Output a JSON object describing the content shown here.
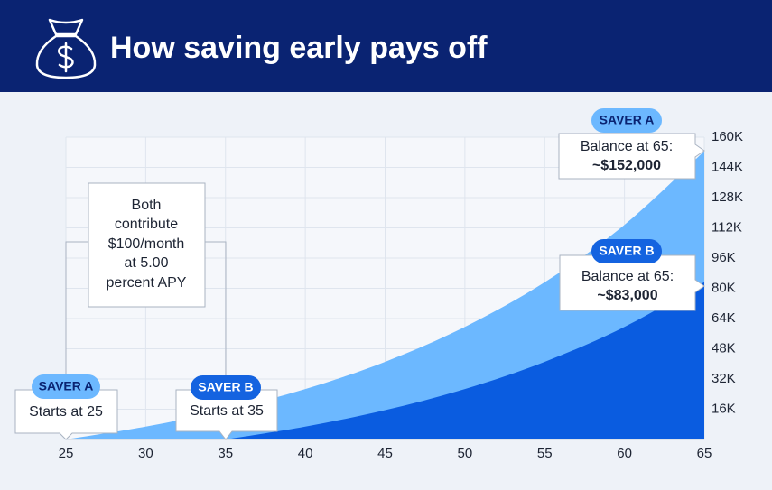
{
  "chart_data": {
    "type": "area",
    "title": "How saving early pays off",
    "x": [
      25,
      30,
      35,
      40,
      45,
      50,
      55,
      60,
      65
    ],
    "series": [
      {
        "name": "SAVER A",
        "color": "#6cb8ff",
        "values": [
          0,
          6800,
          15500,
          26700,
          41100,
          59600,
          83200,
          113600,
          152600
        ]
      },
      {
        "name": "SAVER B",
        "color": "#0a5ce0",
        "values": [
          null,
          null,
          0,
          6800,
          15500,
          26700,
          41100,
          59600,
          83200
        ]
      }
    ],
    "xlim": [
      25,
      65
    ],
    "xticks": [
      25,
      30,
      35,
      40,
      45,
      50,
      55,
      60,
      65
    ],
    "ylim": [
      0,
      160000
    ],
    "yticks": [
      {
        "value": 16000,
        "label": "16K"
      },
      {
        "value": 32000,
        "label": "32K"
      },
      {
        "value": 48000,
        "label": "48K"
      },
      {
        "value": 64000,
        "label": "64K"
      },
      {
        "value": 80000,
        "label": "80K"
      },
      {
        "value": 96000,
        "label": "96K"
      },
      {
        "value": 112000,
        "label": "112K"
      },
      {
        "value": 128000,
        "label": "128K"
      },
      {
        "value": 144000,
        "label": "144K"
      },
      {
        "value": 160000,
        "label": "160K"
      }
    ],
    "grid": true,
    "annotations": {
      "start_a": "Starts at 25",
      "start_b": "Starts at 35",
      "note": [
        "Both",
        "contribute",
        "$100/month",
        "at 5.00",
        "percent APY"
      ],
      "end_a": [
        "Balance at 65:",
        "~$152,000"
      ],
      "end_b": [
        "Balance at 65:",
        "~$83,000"
      ]
    }
  }
}
